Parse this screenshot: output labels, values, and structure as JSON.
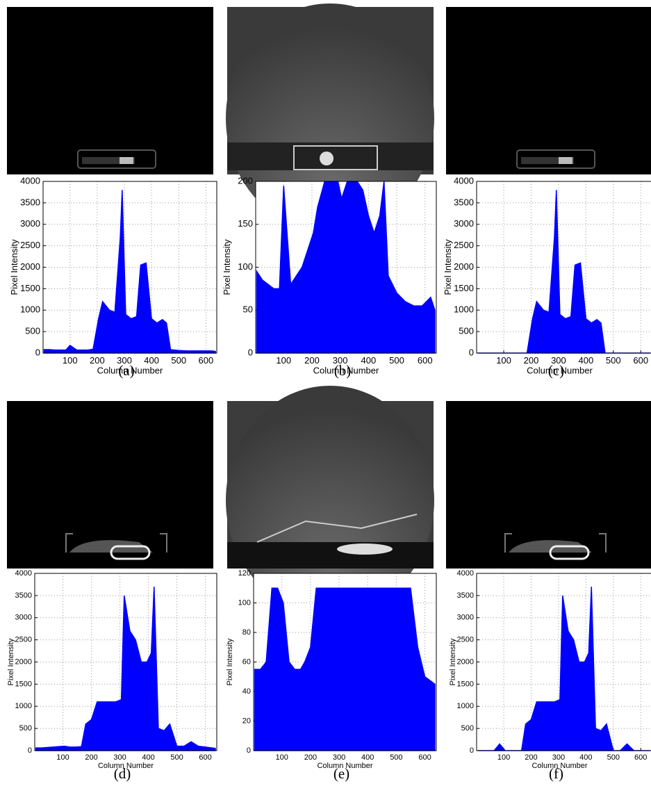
{
  "chart_data": [
    {
      "type": "area",
      "caption": "(a)",
      "xlabel": "Column Number",
      "ylabel": "Pixel Intensity",
      "color": "#0000ff",
      "grid": true,
      "xlim": [
        1,
        640
      ],
      "xticks": [
        100,
        200,
        300,
        400,
        500,
        600
      ],
      "ylim": [
        0,
        4000
      ],
      "yticks": [
        0,
        500,
        1000,
        1500,
        2000,
        2500,
        3000,
        3500,
        4000
      ],
      "x": [
        5,
        25,
        45,
        65,
        85,
        100,
        125,
        145,
        165,
        185,
        205,
        220,
        245,
        265,
        285,
        292,
        305,
        325,
        345,
        360,
        380,
        400,
        420,
        440,
        455,
        470,
        500,
        530,
        560,
        590,
        620,
        635
      ],
      "values": [
        80,
        80,
        70,
        70,
        70,
        180,
        70,
        70,
        70,
        90,
        800,
        1200,
        1000,
        950,
        2700,
        3800,
        900,
        800,
        850,
        2050,
        2100,
        800,
        700,
        780,
        700,
        80,
        60,
        50,
        50,
        50,
        50,
        40
      ]
    },
    {
      "type": "area",
      "caption": "(b)",
      "xlabel": "Column Number",
      "ylabel": "Pixel Intensity",
      "color": "#0000ff",
      "grid": true,
      "xlim": [
        1,
        640
      ],
      "xticks": [
        100,
        200,
        300,
        400,
        500,
        600
      ],
      "ylim": [
        0,
        200
      ],
      "yticks": [
        0,
        50,
        100,
        150,
        200
      ],
      "x": [
        5,
        25,
        45,
        65,
        85,
        100,
        125,
        145,
        165,
        185,
        205,
        220,
        245,
        265,
        285,
        292,
        305,
        325,
        345,
        360,
        380,
        400,
        420,
        440,
        455,
        470,
        500,
        530,
        560,
        590,
        620,
        635
      ],
      "values": [
        95,
        85,
        80,
        75,
        75,
        195,
        80,
        90,
        100,
        120,
        140,
        170,
        200,
        200,
        200,
        200,
        180,
        200,
        200,
        200,
        190,
        160,
        140,
        160,
        200,
        90,
        70,
        60,
        55,
        55,
        65,
        50
      ]
    },
    {
      "type": "area",
      "caption": "(c)",
      "xlabel": "Column Number",
      "ylabel": "Pixel Intensity",
      "color": "#0000ff",
      "grid": true,
      "xlim": [
        1,
        640
      ],
      "xticks": [
        100,
        200,
        300,
        400,
        500,
        600
      ],
      "ylim": [
        0,
        4000
      ],
      "yticks": [
        0,
        500,
        1000,
        1500,
        2000,
        2500,
        3000,
        3500,
        4000
      ],
      "x": [
        5,
        25,
        45,
        65,
        85,
        100,
        125,
        145,
        165,
        185,
        205,
        220,
        245,
        265,
        285,
        292,
        305,
        325,
        345,
        360,
        380,
        400,
        420,
        440,
        455,
        470,
        500,
        530,
        560,
        590,
        620,
        635
      ],
      "values": [
        0,
        0,
        0,
        0,
        0,
        0,
        0,
        0,
        0,
        0,
        800,
        1200,
        1000,
        950,
        2700,
        3800,
        900,
        800,
        850,
        2050,
        2100,
        800,
        700,
        780,
        700,
        0,
        0,
        0,
        0,
        0,
        0,
        0
      ]
    },
    {
      "type": "area",
      "caption": "(d)",
      "xlabel": "Column Number",
      "ylabel": "Pixel Intensity",
      "color": "#0000ff",
      "grid": true,
      "xlim": [
        1,
        640
      ],
      "xticks": [
        100,
        200,
        300,
        400,
        500,
        600
      ],
      "ylim": [
        0,
        4000
      ],
      "yticks": [
        0,
        500,
        1000,
        1500,
        2000,
        2500,
        3000,
        3500,
        4000
      ],
      "x": [
        5,
        25,
        45,
        65,
        85,
        105,
        125,
        145,
        165,
        180,
        200,
        220,
        245,
        265,
        285,
        305,
        315,
        335,
        355,
        375,
        395,
        410,
        420,
        435,
        455,
        475,
        500,
        525,
        550,
        575,
        600,
        635
      ],
      "values": [
        60,
        60,
        70,
        80,
        90,
        100,
        80,
        80,
        90,
        600,
        700,
        1100,
        1100,
        1100,
        1100,
        1150,
        3500,
        2700,
        2500,
        2000,
        2000,
        2200,
        3700,
        500,
        450,
        600,
        100,
        100,
        200,
        100,
        80,
        50
      ]
    },
    {
      "type": "area",
      "caption": "(e)",
      "xlabel": "Column Number",
      "ylabel": "Pixel Intensity",
      "color": "#0000ff",
      "grid": true,
      "xlim": [
        1,
        640
      ],
      "xticks": [
        100,
        200,
        300,
        400,
        500,
        600
      ],
      "ylim": [
        0,
        120
      ],
      "yticks": [
        0,
        20,
        40,
        60,
        80,
        100,
        120
      ],
      "x": [
        5,
        25,
        45,
        65,
        85,
        105,
        125,
        145,
        165,
        180,
        200,
        220,
        245,
        265,
        285,
        305,
        315,
        335,
        355,
        375,
        395,
        410,
        420,
        435,
        455,
        475,
        500,
        525,
        550,
        575,
        600,
        635
      ],
      "values": [
        55,
        55,
        60,
        110,
        110,
        100,
        60,
        55,
        55,
        60,
        70,
        110,
        110,
        110,
        110,
        110,
        110,
        110,
        110,
        110,
        110,
        110,
        110,
        110,
        110,
        110,
        110,
        110,
        110,
        70,
        50,
        45
      ]
    },
    {
      "type": "area",
      "caption": "(f)",
      "xlabel": "Column Number",
      "ylabel": "Pixel Intensity",
      "color": "#0000ff",
      "grid": true,
      "xlim": [
        1,
        640
      ],
      "xticks": [
        100,
        200,
        300,
        400,
        500,
        600
      ],
      "ylim": [
        0,
        4000
      ],
      "yticks": [
        0,
        500,
        1000,
        1500,
        2000,
        2500,
        3000,
        3500,
        4000
      ],
      "x": [
        5,
        25,
        45,
        65,
        85,
        105,
        125,
        145,
        165,
        180,
        200,
        220,
        245,
        265,
        285,
        305,
        315,
        335,
        355,
        375,
        395,
        410,
        420,
        435,
        455,
        475,
        500,
        525,
        550,
        575,
        600,
        635
      ],
      "values": [
        0,
        0,
        0,
        0,
        150,
        0,
        0,
        0,
        0,
        600,
        700,
        1100,
        1100,
        1100,
        1100,
        1150,
        3500,
        2700,
        2500,
        2000,
        2000,
        2200,
        3700,
        500,
        450,
        600,
        0,
        0,
        150,
        0,
        0,
        0
      ]
    }
  ]
}
